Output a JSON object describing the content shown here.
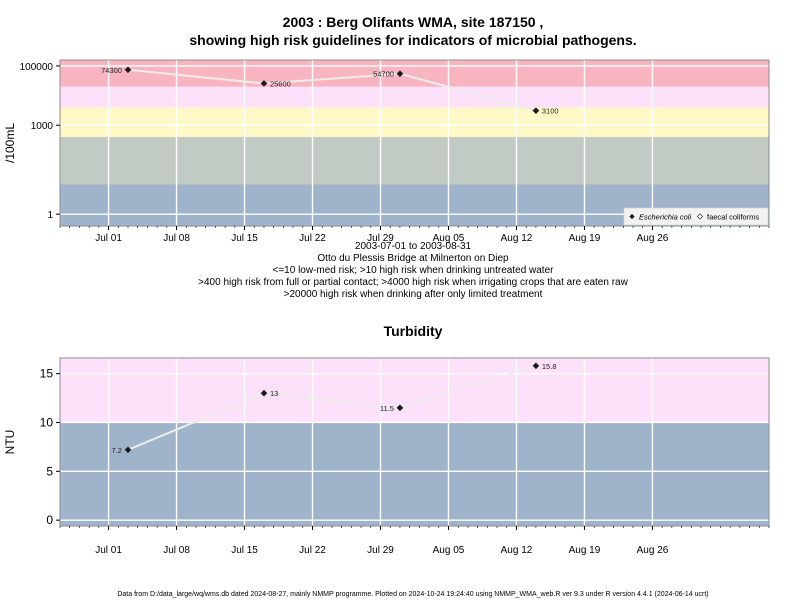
{
  "page": {
    "title_line1": "2003 : Berg Olifants WMA, site 187150 ,",
    "title_line2": "showing high risk guidelines for indicators of microbial pathogens.",
    "caption_lines": [
      "2003-07-01 to 2003-08-31",
      "Otto du Plessis Bridge at Milnerton on Diep",
      "<=10 low-med risk; >10 high risk when drinking untreated water",
      ">400 high risk from full or partial contact; >4000 high risk when irrigating crops that are eaten raw",
      ">20000 high risk when drinking after only limited treatment"
    ],
    "footer": "Data from D:/data_large/wq/wms.db dated 2024-08-27, mainly NMMP programme. Plotted on 2024-10-24 19:24:40 using NMMP_WMA_web.R ver 9.3 under R version 4.4.1 (2024-06-14 ucrt)"
  },
  "chart_data": [
    {
      "type": "scatter",
      "title": "",
      "ylabel": "/100mL",
      "yscale": "log",
      "xlim": [
        "2003-06-26",
        "2003-09-07"
      ],
      "ylim_log10": [
        -0.4,
        5.2
      ],
      "x_ticks": [
        "2003-07-01",
        "2003-07-08",
        "2003-07-15",
        "2003-07-22",
        "2003-07-29",
        "2003-08-05",
        "2003-08-12",
        "2003-08-19",
        "2003-08-26"
      ],
      "x_tick_labels": [
        "Jul 01",
        "Jul 08",
        "Jul 15",
        "Jul 22",
        "Jul 29",
        "Aug 05",
        "Aug 12",
        "Aug 19",
        "Aug 26"
      ],
      "y_ticks": [
        1,
        1000,
        100000
      ],
      "y_tick_labels": [
        "1",
        "1000",
        "100000"
      ],
      "grid": true,
      "bands": [
        {
          "from": 0.3,
          "to": 10,
          "color": "#9fb3cb"
        },
        {
          "from": 10,
          "to": 400,
          "color": "#c1cbc3"
        },
        {
          "from": 400,
          "to": 4000,
          "color": "#fff8c7"
        },
        {
          "from": 4000,
          "to": 20000,
          "color": "#fde0f9"
        },
        {
          "from": 20000,
          "to": 160000,
          "color": "#f9b4c2"
        }
      ],
      "series": [
        {
          "name": "Escherichia coli",
          "marker": "filled-diamond",
          "points": [
            {
              "x": "2003-07-03",
              "y": 74300,
              "label": "74300"
            },
            {
              "x": "2003-07-17",
              "y": 25600,
              "label": "25600"
            },
            {
              "x": "2003-07-31",
              "y": 54700,
              "label": "54700"
            },
            {
              "x": "2003-08-14",
              "y": 3100,
              "label": "3100"
            }
          ]
        }
      ],
      "legend": {
        "placement": "bottom-right",
        "entries": [
          "Escherichia coli",
          "faecal coliforms"
        ]
      }
    },
    {
      "type": "scatter",
      "title": "Turbidity",
      "ylabel": "NTU",
      "yscale": "linear",
      "xlim": [
        "2003-06-26",
        "2003-09-07"
      ],
      "ylim": [
        -0.6,
        16.6
      ],
      "x_ticks": [
        "2003-07-01",
        "2003-07-08",
        "2003-07-15",
        "2003-07-22",
        "2003-07-29",
        "2003-08-05",
        "2003-08-12",
        "2003-08-19",
        "2003-08-26"
      ],
      "x_tick_labels": [
        "Jul 01",
        "Jul 08",
        "Jul 15",
        "Jul 22",
        "Jul 29",
        "Aug 05",
        "Aug 12",
        "Aug 19",
        "Aug 26"
      ],
      "y_ticks": [
        0,
        5,
        10,
        15
      ],
      "y_tick_labels": [
        "0",
        "5",
        "10",
        "15"
      ],
      "grid": true,
      "bands": [
        {
          "from": -0.6,
          "to": 10,
          "color": "#9fb3cb"
        },
        {
          "from": 10,
          "to": 16.6,
          "color": "#fde0f9"
        }
      ],
      "series": [
        {
          "name": "",
          "marker": "filled-diamond",
          "points": [
            {
              "x": "2003-07-03",
              "y": 7.2,
              "label": "7.2"
            },
            {
              "x": "2003-07-17",
              "y": 13,
              "label": "13"
            },
            {
              "x": "2003-07-31",
              "y": 11.5,
              "label": "11.5"
            },
            {
              "x": "2003-08-14",
              "y": 15.8,
              "label": "15.8"
            }
          ]
        }
      ]
    }
  ]
}
